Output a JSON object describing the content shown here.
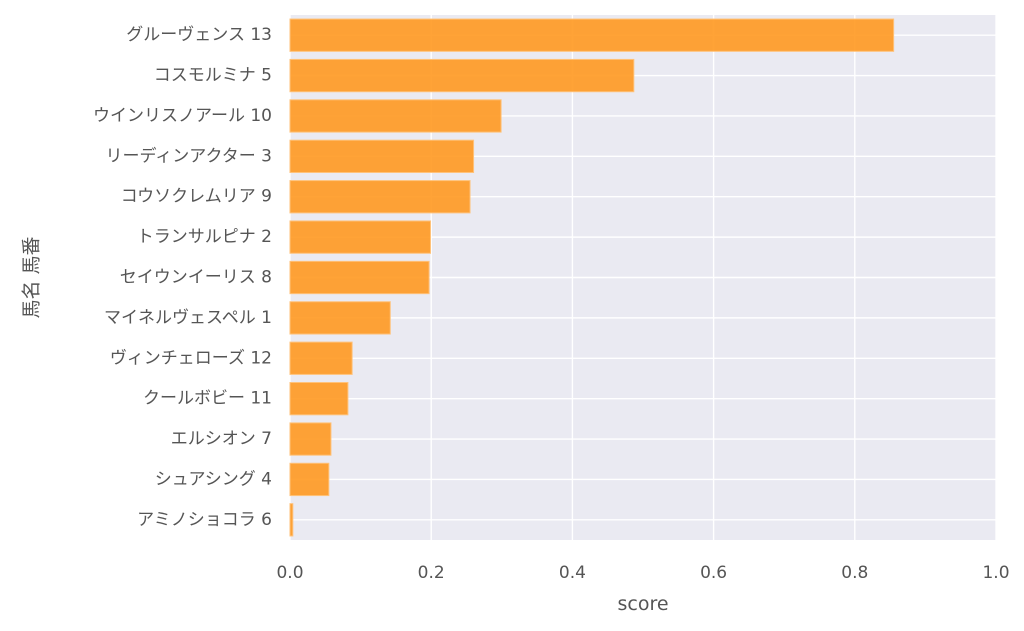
{
  "chart_data": {
    "type": "bar",
    "orientation": "horizontal",
    "title": "",
    "xlabel": "score",
    "ylabel": "馬名 馬番",
    "xlim": [
      0.0,
      1.0
    ],
    "xticks": [
      "0.0",
      "0.2",
      "0.4",
      "0.6",
      "0.8",
      "1.0"
    ],
    "xtick_values": [
      0.0,
      0.2,
      0.4,
      0.6,
      0.8,
      1.0
    ],
    "grid": true,
    "legend": "none",
    "categories": [
      "グルーヴェンス 13",
      "コスモルミナ 5",
      "ウインリスノアール 10",
      "リーディンアクター 3",
      "コウソクレムリア 9",
      "トランサルピナ 2",
      "セイウンイーリス 8",
      "マイネルヴェスペル 1",
      "ヴィンチェローズ 12",
      "クールボビー 11",
      "エルシオン 7",
      "シュアシング 4",
      "アミノショコラ 6"
    ],
    "values": [
      0.855,
      0.487,
      0.299,
      0.26,
      0.255,
      0.199,
      0.197,
      0.142,
      0.088,
      0.082,
      0.058,
      0.055,
      0.004
    ]
  },
  "colors": {
    "bar": "#FF9921",
    "bar_edge": "#FFC27A",
    "plot_background": "#EAEAF2",
    "grid": "#FFFFFF",
    "text": "#555555"
  }
}
